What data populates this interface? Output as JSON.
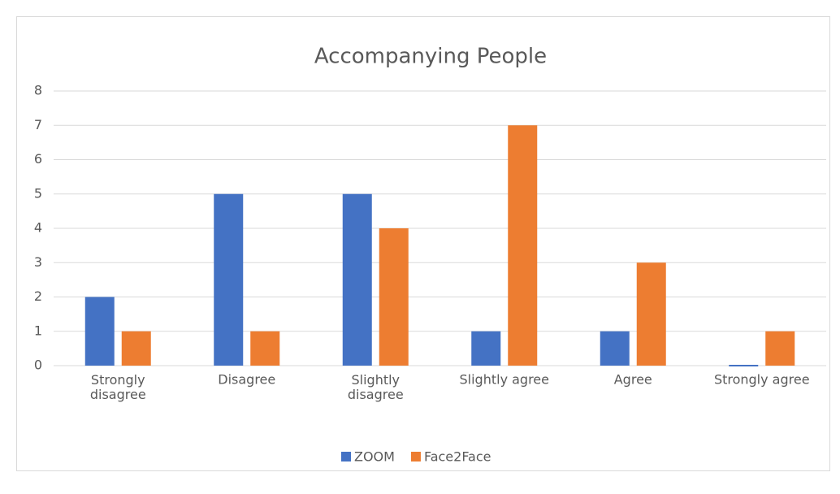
{
  "chart_data": {
    "type": "bar",
    "title": "Accompanying People",
    "categories": [
      "Strongly disagree",
      "Disagree",
      "Slightly disagree",
      "Slightly agree",
      "Agree",
      "Strongly agree"
    ],
    "series": [
      {
        "name": "ZOOM",
        "color": "#4472c4",
        "values": [
          2,
          5,
          5,
          1,
          1,
          0
        ]
      },
      {
        "name": "Face2Face",
        "color": "#ed7d31",
        "values": [
          1,
          1,
          4,
          7,
          3,
          1
        ]
      }
    ],
    "ylim": [
      0,
      8
    ],
    "yticks": [
      0,
      1,
      2,
      3,
      4,
      5,
      6,
      7,
      8
    ],
    "grid": true,
    "legend": "bottom"
  }
}
